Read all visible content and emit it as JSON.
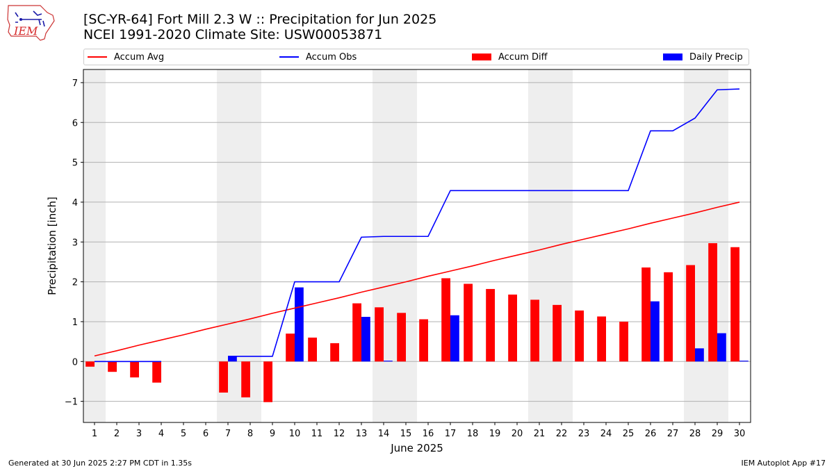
{
  "header": {
    "logo_text": "IEM",
    "title_line1": "[SC-YR-64] Fort Mill 2.3 W :: Precipitation for Jun 2025",
    "title_line2": "NCEI 1991-2020 Climate Site: USW00053871"
  },
  "legend": {
    "position": "top, above plot, single row",
    "items": [
      {
        "label": "Accum Avg",
        "kind": "line",
        "color": "#ff0000"
      },
      {
        "label": "Accum Obs",
        "kind": "line",
        "color": "#0000ff"
      },
      {
        "label": "Accum Diff",
        "kind": "bar",
        "color": "#ff0000"
      },
      {
        "label": "Daily Precip",
        "kind": "bar",
        "color": "#0000ff"
      }
    ]
  },
  "footer": {
    "left": "Generated at 30 Jun 2025 2:27 PM CDT in 1.35s",
    "right": "IEM Autoplot App #17"
  },
  "chart_data": {
    "type": "bar",
    "xlabel": "June 2025",
    "ylabel": "Precipitation [inch]",
    "xlim": [
      0.5,
      30.5
    ],
    "ylim": [
      -1.53,
      7.33
    ],
    "yticks": [
      -1,
      0,
      1,
      2,
      3,
      4,
      5,
      6,
      7
    ],
    "ytick_labels": [
      "−1",
      "0",
      "1",
      "2",
      "3",
      "4",
      "5",
      "6",
      "7"
    ],
    "grid": "horizontal",
    "weekend_shading": [
      [
        0.5,
        1.5
      ],
      [
        6.5,
        8.5
      ],
      [
        13.5,
        15.5
      ],
      [
        20.5,
        22.5
      ],
      [
        27.5,
        29.5
      ]
    ],
    "days": [
      1,
      2,
      3,
      4,
      5,
      6,
      7,
      8,
      9,
      10,
      11,
      12,
      13,
      14,
      15,
      16,
      17,
      18,
      19,
      20,
      21,
      22,
      23,
      24,
      25,
      26,
      27,
      28,
      29,
      30
    ],
    "series": [
      {
        "name": "Accum Avg",
        "kind": "line",
        "color": "#ff0000",
        "values": [
          0.14,
          0.27,
          0.41,
          0.54,
          0.67,
          0.81,
          0.94,
          1.07,
          1.21,
          1.34,
          1.47,
          1.6,
          1.74,
          1.87,
          2.0,
          2.14,
          2.27,
          2.4,
          2.54,
          2.67,
          2.8,
          2.94,
          3.07,
          3.2,
          3.33,
          3.47,
          3.6,
          3.73,
          3.87,
          4.0
        ]
      },
      {
        "name": "Accum Obs",
        "kind": "line",
        "color": "#0000ff",
        "x": [
          1,
          2,
          3,
          4,
          7,
          8,
          9,
          10,
          11,
          12,
          13,
          14,
          15,
          16,
          17,
          18,
          19,
          20,
          21,
          22,
          23,
          24,
          25,
          26,
          27,
          28,
          29,
          30
        ],
        "values": [
          0,
          0,
          0,
          0,
          0.13,
          0.13,
          0.13,
          2.0,
          2.0,
          2.0,
          3.12,
          3.14,
          3.14,
          3.14,
          4.29,
          4.29,
          4.29,
          4.29,
          4.29,
          4.29,
          4.29,
          4.29,
          4.29,
          5.79,
          5.79,
          6.11,
          6.82,
          6.84
        ]
      },
      {
        "name": "Accum Diff",
        "kind": "bar",
        "color": "#ff0000",
        "x": [
          1,
          2,
          3,
          4,
          7,
          8,
          9,
          10,
          11,
          12,
          13,
          14,
          15,
          16,
          17,
          18,
          19,
          20,
          21,
          22,
          23,
          24,
          25,
          26,
          27,
          28,
          29,
          30
        ],
        "values": [
          -0.13,
          -0.26,
          -0.4,
          -0.53,
          -0.78,
          -0.9,
          -1.02,
          0.7,
          0.6,
          0.46,
          1.46,
          1.36,
          1.22,
          1.06,
          2.09,
          1.95,
          1.82,
          1.68,
          1.55,
          1.42,
          1.28,
          1.13,
          1.0,
          2.36,
          2.24,
          2.42,
          2.97,
          2.87
        ]
      },
      {
        "name": "Daily Precip",
        "kind": "bar",
        "color": "#0000ff",
        "values": [
          0,
          0,
          0,
          0,
          0,
          0,
          0.13,
          0,
          0,
          1.86,
          0,
          0,
          1.12,
          0.02,
          0,
          0,
          1.16,
          0,
          0,
          0,
          0,
          0,
          0,
          0,
          0,
          1.51,
          0,
          0.33,
          0.71,
          0.02
        ]
      }
    ]
  }
}
